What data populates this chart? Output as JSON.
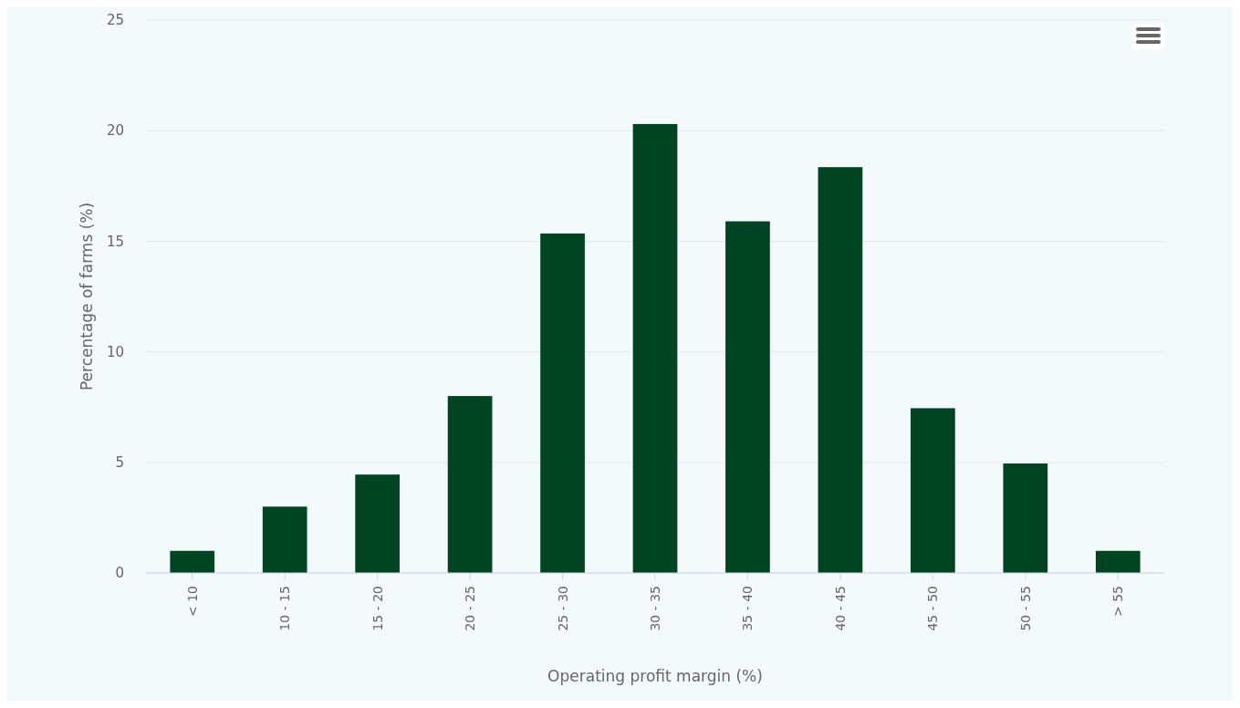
{
  "chart_data": {
    "type": "bar",
    "xlabel": "Operating profit margin (%)",
    "ylabel": "Percentage of farms (%)",
    "categories": [
      "< 10",
      "10 - 15",
      "15 - 20",
      "20 - 25",
      "25 - 30",
      "30 - 35",
      "35 - 40",
      "40 - 45",
      "45 - 50",
      "50 - 55",
      "> 55"
    ],
    "values": [
      1,
      3,
      4.45,
      8,
      15.35,
      20.3,
      15.9,
      18.35,
      7.45,
      4.95,
      1
    ],
    "color": "#004422",
    "ylim": [
      0,
      25
    ],
    "yticks": [
      0,
      5,
      10,
      15,
      20,
      25
    ],
    "grid": "y"
  }
}
